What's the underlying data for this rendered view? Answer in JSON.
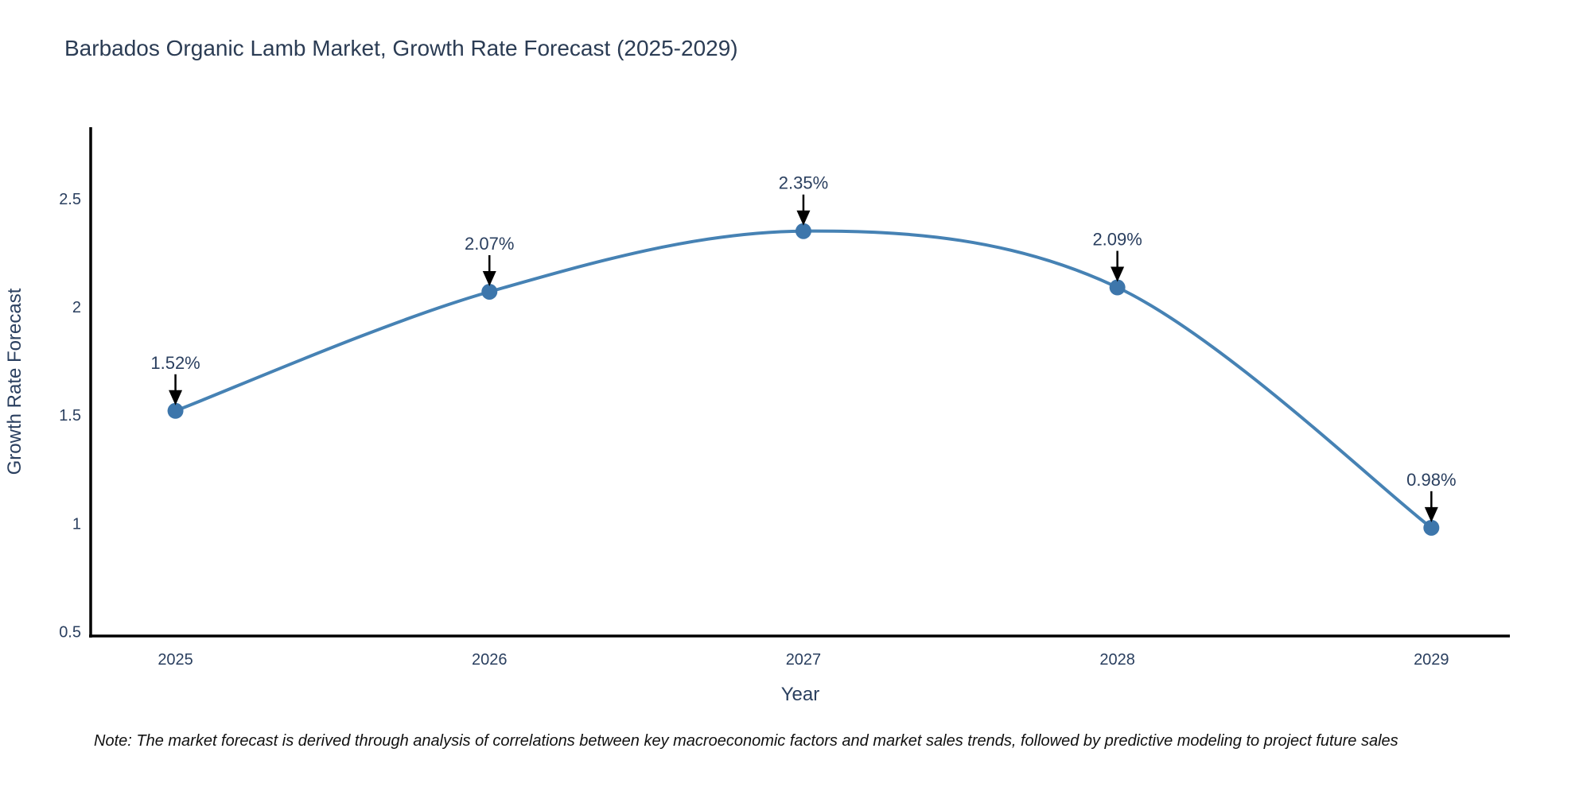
{
  "title": "Barbados Organic Lamb Market, Growth Rate Forecast (2025-2029)",
  "note": "Note: The market forecast is derived through analysis of correlations between key macroeconomic factors and market sales trends, followed by predictive modeling to project future sales",
  "chart_data": {
    "type": "line",
    "title": "Barbados Organic Lamb Market, Growth Rate Forecast (2025-2029)",
    "xlabel": "Year",
    "ylabel": "Growth Rate Forecast",
    "x": [
      2025,
      2026,
      2027,
      2028,
      2029
    ],
    "series": [
      {
        "name": "Growth Rate Forecast",
        "values": [
          1.52,
          2.07,
          2.35,
          2.09,
          0.98
        ]
      }
    ],
    "point_labels": [
      "1.52%",
      "2.07%",
      "2.35%",
      "2.09%",
      "0.98%"
    ],
    "yticks": [
      0.5,
      1,
      1.5,
      2,
      2.5
    ],
    "xticks": [
      2025,
      2026,
      2027,
      2028,
      2029
    ],
    "ylim": [
      0.48,
      2.83
    ],
    "xlim": [
      2024.73,
      2029.25
    ],
    "line_shape": "spline",
    "grid": false,
    "legend": "none",
    "colors": {
      "line": "#4682b4",
      "marker": "#3d76ab",
      "axis_line": "#000000",
      "title_text": "#2b3c54",
      "tick_text": "#2a3f5f",
      "axis_title_text": "#2a3f5f",
      "annotation_text": "#2a3f5f",
      "annotation_arrow": "#000000",
      "note_text": "#111111",
      "background": "#ffffff"
    }
  }
}
